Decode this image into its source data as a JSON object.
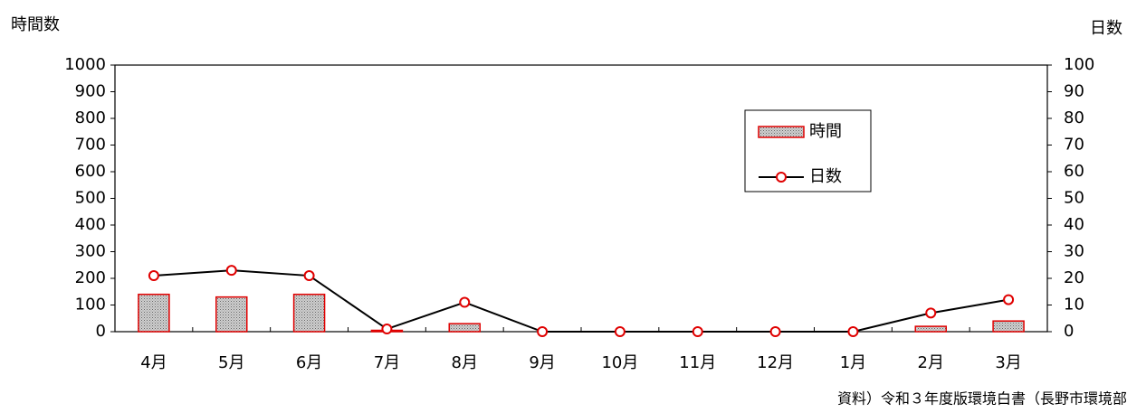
{
  "chart_data": {
    "type": "bar",
    "y_label": "時間数",
    "y2_label": "日数",
    "source": "資料）令和３年度版環境白書（長野市環境部",
    "categories": [
      "4月",
      "5月",
      "6月",
      "7月",
      "8月",
      "9月",
      "10月",
      "11月",
      "12月",
      "1月",
      "2月",
      "3月"
    ],
    "series": [
      {
        "name": "時間",
        "type": "bar",
        "color": "#e00000",
        "values": [
          140,
          130,
          140,
          5,
          30,
          0,
          0,
          0,
          0,
          0,
          20,
          40
        ]
      },
      {
        "name": "日数",
        "type": "line",
        "axis": "y2",
        "color": "#000000",
        "marker_color": "#e00000",
        "values": [
          21,
          23,
          21,
          1,
          11,
          0,
          0,
          0,
          0,
          0,
          7,
          12
        ]
      }
    ],
    "ylim": [
      0,
      1000
    ],
    "yticks": [
      0,
      100,
      200,
      300,
      400,
      500,
      600,
      700,
      800,
      900,
      1000
    ],
    "y2lim": [
      0,
      100
    ],
    "y2ticks": [
      0,
      10,
      20,
      30,
      40,
      50,
      60,
      70,
      80,
      90,
      100
    ]
  }
}
